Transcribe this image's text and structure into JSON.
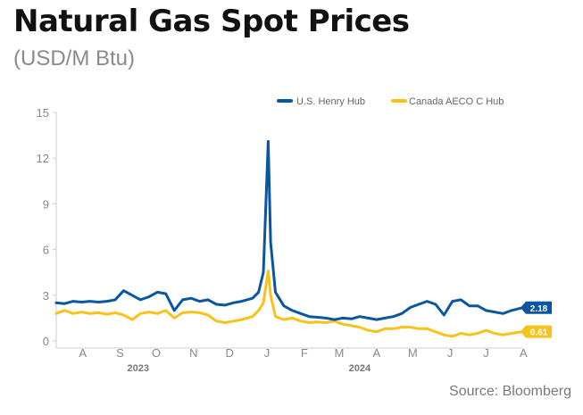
{
  "header": {
    "title": "Natural Gas Spot Prices",
    "subtitle": "(USD/M Btu)"
  },
  "footer": {
    "source": "Source: Bloomberg"
  },
  "colors": {
    "henry": "#0b56a0",
    "aeco": "#f7c31b",
    "axis": "#cccccc",
    "text": "#888888"
  },
  "chart_data": {
    "type": "line",
    "ylim": [
      0,
      15
    ],
    "yticks": [
      0,
      3,
      6,
      9,
      12,
      15
    ],
    "xlim": [
      "2023-07-24",
      "2024-08-14"
    ],
    "xticks": [
      {
        "label": "A",
        "date": "2023-08-15"
      },
      {
        "label": "S",
        "date": "2023-09-15"
      },
      {
        "label": "O",
        "date": "2023-10-15"
      },
      {
        "label": "N",
        "date": "2023-11-15"
      },
      {
        "label": "D",
        "date": "2023-12-15"
      },
      {
        "label": "J",
        "date": "2024-01-15"
      },
      {
        "label": "F",
        "date": "2024-02-15"
      },
      {
        "label": "M",
        "date": "2024-03-15"
      },
      {
        "label": "A",
        "date": "2024-04-15"
      },
      {
        "label": "M",
        "date": "2024-05-15"
      },
      {
        "label": "J",
        "date": "2024-06-15"
      },
      {
        "label": "J",
        "date": "2024-07-15"
      },
      {
        "label": "A",
        "date": "2024-08-15"
      }
    ],
    "years": [
      {
        "label": "2023",
        "date": "2023-09-30"
      },
      {
        "label": "2024",
        "date": "2024-04-01"
      }
    ],
    "legend_position": "top-right",
    "grid": false,
    "series": [
      {
        "name": "U.S. Henry Hub",
        "color": "#0b56a0",
        "end_label": "2.18",
        "points": [
          [
            "2023-07-24",
            2.5
          ],
          [
            "2023-07-31",
            2.45
          ],
          [
            "2023-08-07",
            2.6
          ],
          [
            "2023-08-14",
            2.55
          ],
          [
            "2023-08-21",
            2.6
          ],
          [
            "2023-08-28",
            2.55
          ],
          [
            "2023-09-04",
            2.6
          ],
          [
            "2023-09-11",
            2.7
          ],
          [
            "2023-09-18",
            3.3
          ],
          [
            "2023-09-25",
            3.0
          ],
          [
            "2023-10-02",
            2.7
          ],
          [
            "2023-10-09",
            2.9
          ],
          [
            "2023-10-16",
            3.2
          ],
          [
            "2023-10-23",
            3.1
          ],
          [
            "2023-10-30",
            2.0
          ],
          [
            "2023-11-06",
            2.7
          ],
          [
            "2023-11-13",
            2.8
          ],
          [
            "2023-11-20",
            2.6
          ],
          [
            "2023-11-27",
            2.7
          ],
          [
            "2023-12-04",
            2.4
          ],
          [
            "2023-12-11",
            2.35
          ],
          [
            "2023-12-18",
            2.5
          ],
          [
            "2023-12-25",
            2.6
          ],
          [
            "2024-01-03",
            2.8
          ],
          [
            "2024-01-08",
            3.2
          ],
          [
            "2024-01-12",
            4.5
          ],
          [
            "2024-01-16",
            13.1
          ],
          [
            "2024-01-18",
            6.5
          ],
          [
            "2024-01-22",
            3.2
          ],
          [
            "2024-01-29",
            2.3
          ],
          [
            "2024-02-05",
            2.0
          ],
          [
            "2024-02-12",
            1.8
          ],
          [
            "2024-02-19",
            1.6
          ],
          [
            "2024-02-26",
            1.55
          ],
          [
            "2024-03-04",
            1.5
          ],
          [
            "2024-03-11",
            1.4
          ],
          [
            "2024-03-18",
            1.5
          ],
          [
            "2024-03-25",
            1.45
          ],
          [
            "2024-04-01",
            1.6
          ],
          [
            "2024-04-08",
            1.5
          ],
          [
            "2024-04-15",
            1.4
          ],
          [
            "2024-04-22",
            1.5
          ],
          [
            "2024-04-29",
            1.6
          ],
          [
            "2024-05-06",
            1.8
          ],
          [
            "2024-05-13",
            2.2
          ],
          [
            "2024-05-20",
            2.4
          ],
          [
            "2024-05-27",
            2.6
          ],
          [
            "2024-06-03",
            2.4
          ],
          [
            "2024-06-10",
            1.7
          ],
          [
            "2024-06-17",
            2.6
          ],
          [
            "2024-06-24",
            2.7
          ],
          [
            "2024-07-01",
            2.3
          ],
          [
            "2024-07-08",
            2.3
          ],
          [
            "2024-07-15",
            2.0
          ],
          [
            "2024-07-22",
            1.9
          ],
          [
            "2024-07-29",
            1.8
          ],
          [
            "2024-08-05",
            2.0
          ],
          [
            "2024-08-14",
            2.18
          ]
        ]
      },
      {
        "name": "Canada AECO C Hub",
        "color": "#f7c31b",
        "end_label": "0.61",
        "points": [
          [
            "2023-07-24",
            1.8
          ],
          [
            "2023-07-31",
            2.0
          ],
          [
            "2023-08-07",
            1.8
          ],
          [
            "2023-08-14",
            1.9
          ],
          [
            "2023-08-21",
            1.8
          ],
          [
            "2023-08-28",
            1.85
          ],
          [
            "2023-09-04",
            1.75
          ],
          [
            "2023-09-11",
            1.85
          ],
          [
            "2023-09-18",
            1.7
          ],
          [
            "2023-09-25",
            1.4
          ],
          [
            "2023-10-02",
            1.8
          ],
          [
            "2023-10-09",
            1.9
          ],
          [
            "2023-10-16",
            1.8
          ],
          [
            "2023-10-23",
            2.0
          ],
          [
            "2023-10-30",
            1.5
          ],
          [
            "2023-11-06",
            1.85
          ],
          [
            "2023-11-13",
            1.9
          ],
          [
            "2023-11-20",
            1.85
          ],
          [
            "2023-11-27",
            1.7
          ],
          [
            "2023-12-04",
            1.3
          ],
          [
            "2023-12-11",
            1.2
          ],
          [
            "2023-12-18",
            1.3
          ],
          [
            "2023-12-25",
            1.4
          ],
          [
            "2024-01-03",
            1.6
          ],
          [
            "2024-01-08",
            2.0
          ],
          [
            "2024-01-12",
            2.5
          ],
          [
            "2024-01-16",
            4.6
          ],
          [
            "2024-01-18",
            3.0
          ],
          [
            "2024-01-22",
            1.6
          ],
          [
            "2024-01-29",
            1.4
          ],
          [
            "2024-02-05",
            1.5
          ],
          [
            "2024-02-12",
            1.3
          ],
          [
            "2024-02-19",
            1.2
          ],
          [
            "2024-02-26",
            1.25
          ],
          [
            "2024-03-04",
            1.2
          ],
          [
            "2024-03-11",
            1.3
          ],
          [
            "2024-03-18",
            1.1
          ],
          [
            "2024-03-25",
            1.0
          ],
          [
            "2024-04-01",
            0.9
          ],
          [
            "2024-04-08",
            0.7
          ],
          [
            "2024-04-15",
            0.6
          ],
          [
            "2024-04-22",
            0.8
          ],
          [
            "2024-04-29",
            0.8
          ],
          [
            "2024-05-06",
            0.9
          ],
          [
            "2024-05-13",
            0.9
          ],
          [
            "2024-05-20",
            0.8
          ],
          [
            "2024-05-27",
            0.8
          ],
          [
            "2024-06-03",
            0.6
          ],
          [
            "2024-06-10",
            0.4
          ],
          [
            "2024-06-17",
            0.3
          ],
          [
            "2024-06-24",
            0.5
          ],
          [
            "2024-07-01",
            0.4
          ],
          [
            "2024-07-08",
            0.5
          ],
          [
            "2024-07-15",
            0.7
          ],
          [
            "2024-07-22",
            0.5
          ],
          [
            "2024-07-29",
            0.4
          ],
          [
            "2024-08-05",
            0.5
          ],
          [
            "2024-08-14",
            0.61
          ]
        ]
      }
    ]
  }
}
